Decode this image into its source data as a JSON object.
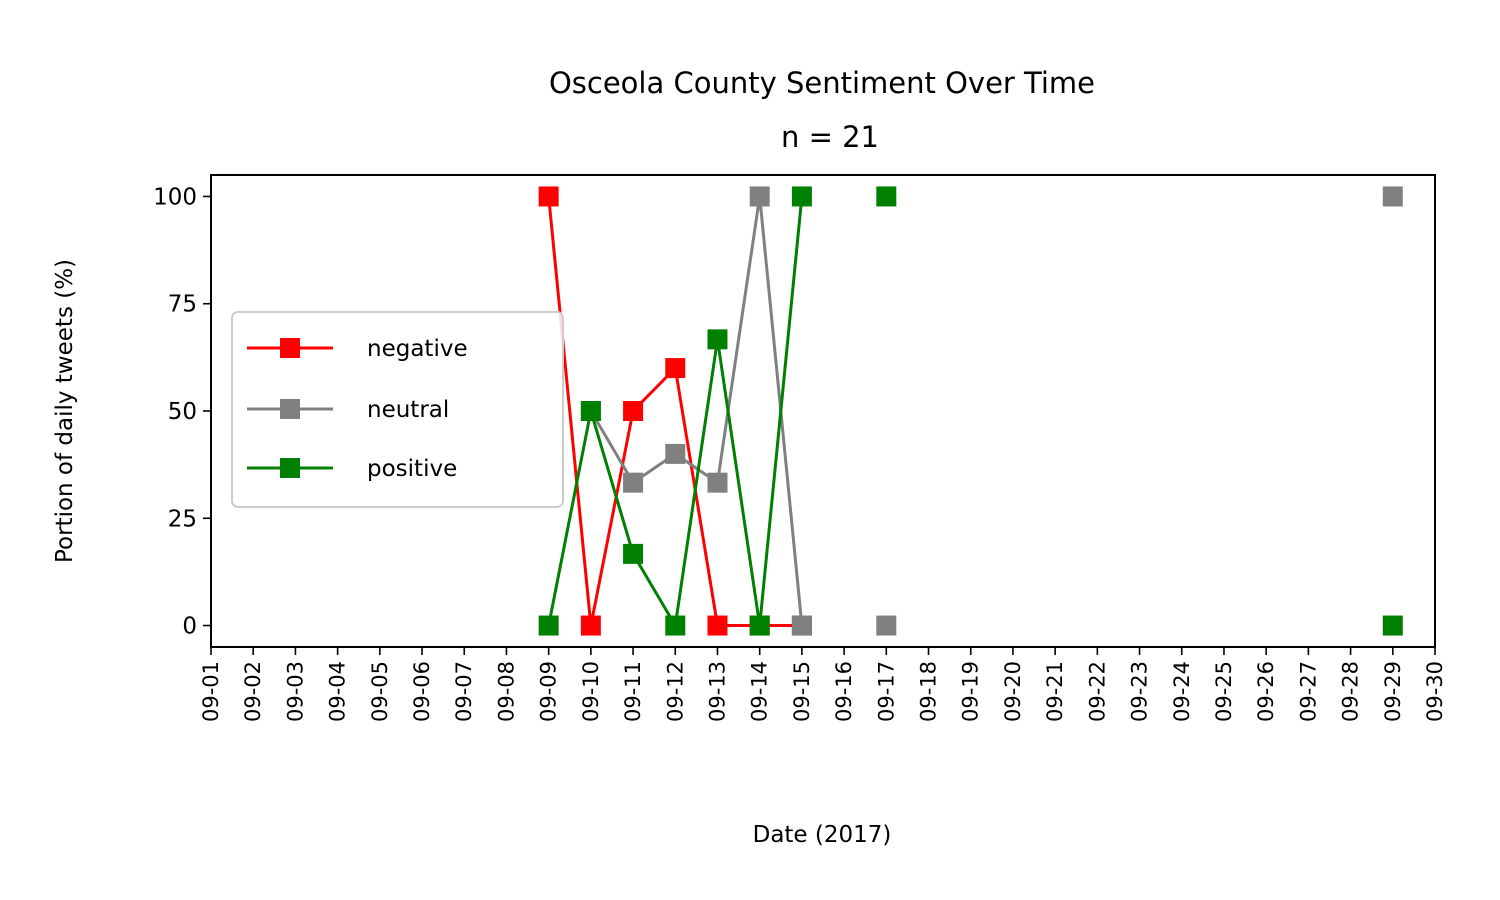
{
  "chart_data": {
    "type": "line",
    "title": "Osceola County Sentiment Over Time",
    "subtitle": "n = 21",
    "xlabel": "Date (2017)",
    "ylabel": "Portion of daily tweets (%)",
    "xlim": [
      "2017-09-01",
      "2017-09-30"
    ],
    "ylim": [
      -5,
      105
    ],
    "yticks": [
      0,
      25,
      50,
      75,
      100
    ],
    "xtick_labels": [
      "09-01",
      "09-02",
      "09-03",
      "09-04",
      "09-05",
      "09-06",
      "09-07",
      "09-08",
      "09-09",
      "09-10",
      "09-11",
      "09-12",
      "09-13",
      "09-14",
      "09-15",
      "09-16",
      "09-17",
      "09-18",
      "09-19",
      "09-20",
      "09-21",
      "09-22",
      "09-23",
      "09-24",
      "09-25",
      "09-26",
      "09-27",
      "09-28",
      "09-29",
      "09-30"
    ],
    "grid": false,
    "legend_position": "center-left",
    "series": [
      {
        "name": "negative",
        "color": "#ff0000",
        "marker": "square",
        "points": [
          {
            "x": "2017-09-09",
            "y": 100
          },
          {
            "x": "2017-09-10",
            "y": 0
          },
          {
            "x": "2017-09-11",
            "y": 50
          },
          {
            "x": "2017-09-12",
            "y": 60
          },
          {
            "x": "2017-09-13",
            "y": 0
          },
          {
            "x": "2017-09-14",
            "y": 0
          },
          {
            "x": "2017-09-15",
            "y": 0
          }
        ]
      },
      {
        "name": "neutral",
        "color": "#808080",
        "marker": "square",
        "points": [
          {
            "x": "2017-09-10",
            "y": 50
          },
          {
            "x": "2017-09-11",
            "y": 33.3
          },
          {
            "x": "2017-09-12",
            "y": 40
          },
          {
            "x": "2017-09-13",
            "y": 33.3
          },
          {
            "x": "2017-09-14",
            "y": 100
          },
          {
            "x": "2017-09-15",
            "y": 0
          },
          {
            "x": "2017-09-17",
            "y": 0
          },
          {
            "x": "2017-09-29",
            "y": 100
          }
        ]
      },
      {
        "name": "positive",
        "color": "#008000",
        "marker": "square",
        "points": [
          {
            "x": "2017-09-09",
            "y": 0
          },
          {
            "x": "2017-09-10",
            "y": 50
          },
          {
            "x": "2017-09-11",
            "y": 16.7
          },
          {
            "x": "2017-09-12",
            "y": 0
          },
          {
            "x": "2017-09-13",
            "y": 66.7
          },
          {
            "x": "2017-09-14",
            "y": 0
          },
          {
            "x": "2017-09-15",
            "y": 100
          },
          {
            "x": "2017-09-17",
            "y": 100
          },
          {
            "x": "2017-09-29",
            "y": 0
          }
        ]
      }
    ]
  }
}
